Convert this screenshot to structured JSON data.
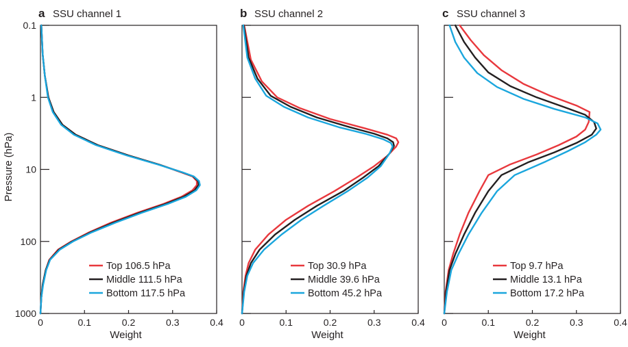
{
  "figure": {
    "ylabel": "Pressure (hPa)",
    "colors": {
      "red": "#e8383d",
      "black": "#231f20",
      "blue": "#1aa6dd",
      "axis": "#231f20"
    }
  },
  "chart_data": [
    {
      "type": "line",
      "panel_letter": "a",
      "title": "SSU channel 1",
      "xlabel": "Weight",
      "ylabel": "Pressure (hPa)",
      "xlim": [
        0,
        0.4
      ],
      "ylim": [
        1000,
        0.1
      ],
      "y_scale": "log",
      "y_inverted": true,
      "x_ticks": [
        "0",
        "0.1",
        "0.2",
        "0.3",
        "0.4"
      ],
      "y_ticks": [
        "0.1",
        "1",
        "10",
        "100",
        "1000"
      ],
      "legend_position": "bottom-right",
      "series": [
        {
          "name": "Top 106.5 hPa",
          "color": "#e8383d",
          "points": [
            [
              0,
              1000
            ],
            [
              0.002,
              600
            ],
            [
              0.005,
              400
            ],
            [
              0.012,
              250
            ],
            [
              0.02,
              180
            ],
            [
              0.04,
              130
            ],
            [
              0.07,
              100
            ],
            [
              0.11,
              75
            ],
            [
              0.16,
              55
            ],
            [
              0.22,
              40
            ],
            [
              0.28,
              30
            ],
            [
              0.32,
              24
            ],
            [
              0.345,
              19.5
            ],
            [
              0.355,
              16.5
            ],
            [
              0.355,
              14.5
            ],
            [
              0.345,
              12.5
            ],
            [
              0.32,
              11
            ],
            [
              0.27,
              8.6
            ],
            [
              0.2,
              6.4
            ],
            [
              0.13,
              4.6
            ],
            [
              0.08,
              3.3
            ],
            [
              0.05,
              2.4
            ],
            [
              0.03,
              1.6
            ],
            [
              0.018,
              1.0
            ],
            [
              0.01,
              0.5
            ],
            [
              0.005,
              0.25
            ],
            [
              0.002,
              0.1
            ]
          ]
        },
        {
          "name": "Middle 111.5 hPa",
          "color": "#231f20",
          "points": [
            [
              0,
              1000
            ],
            [
              0.002,
              600
            ],
            [
              0.005,
              400
            ],
            [
              0.012,
              250
            ],
            [
              0.021,
              180
            ],
            [
              0.042,
              130
            ],
            [
              0.072,
              100
            ],
            [
              0.113,
              75
            ],
            [
              0.165,
              55
            ],
            [
              0.225,
              40
            ],
            [
              0.285,
              30
            ],
            [
              0.325,
              24
            ],
            [
              0.35,
              19.5
            ],
            [
              0.359,
              16.5
            ],
            [
              0.358,
              14.5
            ],
            [
              0.347,
              12.5
            ],
            [
              0.322,
              11
            ],
            [
              0.27,
              8.6
            ],
            [
              0.2,
              6.4
            ],
            [
              0.13,
              4.6
            ],
            [
              0.08,
              3.3
            ],
            [
              0.05,
              2.4
            ],
            [
              0.03,
              1.6
            ],
            [
              0.018,
              1.0
            ],
            [
              0.01,
              0.5
            ],
            [
              0.005,
              0.25
            ],
            [
              0.002,
              0.1
            ]
          ]
        },
        {
          "name": "Bottom 117.5 hPa",
          "color": "#1aa6dd",
          "points": [
            [
              0,
              1000
            ],
            [
              0.002,
              600
            ],
            [
              0.006,
              400
            ],
            [
              0.013,
              250
            ],
            [
              0.022,
              180
            ],
            [
              0.044,
              130
            ],
            [
              0.074,
              100
            ],
            [
              0.116,
              75
            ],
            [
              0.17,
              55
            ],
            [
              0.23,
              40
            ],
            [
              0.29,
              30
            ],
            [
              0.33,
              24
            ],
            [
              0.354,
              19.5
            ],
            [
              0.362,
              16.5
            ],
            [
              0.36,
              14.5
            ],
            [
              0.348,
              12.5
            ],
            [
              0.323,
              11
            ],
            [
              0.268,
              8.6
            ],
            [
              0.196,
              6.4
            ],
            [
              0.126,
              4.6
            ],
            [
              0.076,
              3.3
            ],
            [
              0.047,
              2.4
            ],
            [
              0.028,
              1.6
            ],
            [
              0.017,
              1.0
            ],
            [
              0.01,
              0.5
            ],
            [
              0.005,
              0.25
            ],
            [
              0.002,
              0.1
            ]
          ]
        }
      ]
    },
    {
      "type": "line",
      "panel_letter": "b",
      "title": "SSU channel 2",
      "xlabel": "Weight",
      "ylabel": "",
      "xlim": [
        0,
        0.4
      ],
      "ylim": [
        1000,
        0.1
      ],
      "y_scale": "log",
      "y_inverted": true,
      "x_ticks": [
        "0",
        "0.1",
        "0.2",
        "0.3",
        "0.4"
      ],
      "y_ticks": [],
      "legend_position": "bottom-right",
      "series": [
        {
          "name": "Top 30.9 hPa",
          "color": "#e8383d",
          "points": [
            [
              0,
              1000
            ],
            [
              0.003,
              500
            ],
            [
              0.008,
              300
            ],
            [
              0.015,
              200
            ],
            [
              0.03,
              130
            ],
            [
              0.06,
              80
            ],
            [
              0.1,
              50
            ],
            [
              0.15,
              32
            ],
            [
              0.21,
              20
            ],
            [
              0.26,
              13
            ],
            [
              0.3,
              9
            ],
            [
              0.33,
              6.5
            ],
            [
              0.35,
              4.8
            ],
            [
              0.355,
              4.2
            ],
            [
              0.35,
              3.7
            ],
            [
              0.33,
              3.3
            ],
            [
              0.28,
              2.7
            ],
            [
              0.2,
              2.0
            ],
            [
              0.13,
              1.4
            ],
            [
              0.08,
              1.0
            ],
            [
              0.045,
              0.6
            ],
            [
              0.02,
              0.3
            ],
            [
              0.005,
              0.1
            ]
          ]
        },
        {
          "name": "Middle 39.6 hPa",
          "color": "#231f20",
          "points": [
            [
              0,
              1000
            ],
            [
              0.004,
              500
            ],
            [
              0.01,
              300
            ],
            [
              0.02,
              200
            ],
            [
              0.04,
              130
            ],
            [
              0.075,
              80
            ],
            [
              0.12,
              50
            ],
            [
              0.17,
              32
            ],
            [
              0.23,
              20
            ],
            [
              0.275,
              13
            ],
            [
              0.31,
              9
            ],
            [
              0.335,
              6.0
            ],
            [
              0.345,
              4.7
            ],
            [
              0.343,
              4.2
            ],
            [
              0.33,
              3.7
            ],
            [
              0.3,
              3.2
            ],
            [
              0.245,
              2.6
            ],
            [
              0.17,
              1.9
            ],
            [
              0.11,
              1.35
            ],
            [
              0.065,
              0.95
            ],
            [
              0.035,
              0.55
            ],
            [
              0.015,
              0.28
            ],
            [
              0.004,
              0.1
            ]
          ]
        },
        {
          "name": "Bottom 45.2 hPa",
          "color": "#1aa6dd",
          "points": [
            [
              0,
              1000
            ],
            [
              0.005,
              500
            ],
            [
              0.012,
              300
            ],
            [
              0.025,
              200
            ],
            [
              0.05,
              130
            ],
            [
              0.09,
              80
            ],
            [
              0.135,
              50
            ],
            [
              0.185,
              32
            ],
            [
              0.24,
              20
            ],
            [
              0.285,
              13
            ],
            [
              0.315,
              9
            ],
            [
              0.335,
              6.0
            ],
            [
              0.342,
              4.8
            ],
            [
              0.338,
              4.3
            ],
            [
              0.32,
              3.8
            ],
            [
              0.28,
              3.2
            ],
            [
              0.22,
              2.6
            ],
            [
              0.15,
              1.9
            ],
            [
              0.095,
              1.35
            ],
            [
              0.055,
              0.95
            ],
            [
              0.03,
              0.55
            ],
            [
              0.012,
              0.28
            ],
            [
              0.003,
              0.1
            ]
          ]
        }
      ]
    },
    {
      "type": "line",
      "panel_letter": "c",
      "title": "SSU channel 3",
      "xlabel": "Weight",
      "ylabel": "",
      "xlim": [
        0,
        0.4
      ],
      "ylim": [
        1000,
        0.1
      ],
      "y_scale": "log",
      "y_inverted": true,
      "x_ticks": [
        "0",
        "0.1",
        "0.2",
        "0.3",
        "0.4"
      ],
      "y_ticks": [],
      "legend_position": "bottom-right",
      "series": [
        {
          "name": "Top 9.7 hPa",
          "color": "#e8383d",
          "points": [
            [
              0,
              1000
            ],
            [
              0.003,
              500
            ],
            [
              0.01,
              250
            ],
            [
              0.02,
              150
            ],
            [
              0.035,
              80
            ],
            [
              0.055,
              40
            ],
            [
              0.08,
              20
            ],
            [
              0.1,
              12
            ],
            [
              0.15,
              8.5
            ],
            [
              0.21,
              6.2
            ],
            [
              0.26,
              4.6
            ],
            [
              0.3,
              3.5
            ],
            [
              0.32,
              2.8
            ],
            [
              0.328,
              2.2
            ],
            [
              0.33,
              1.6
            ],
            [
              0.3,
              1.3
            ],
            [
              0.24,
              0.95
            ],
            [
              0.18,
              0.65
            ],
            [
              0.13,
              0.42
            ],
            [
              0.09,
              0.26
            ],
            [
              0.06,
              0.16
            ],
            [
              0.035,
              0.1
            ]
          ]
        },
        {
          "name": "Middle 13.1 hPa",
          "color": "#231f20",
          "points": [
            [
              0,
              1000
            ],
            [
              0.004,
              500
            ],
            [
              0.012,
              250
            ],
            [
              0.025,
              150
            ],
            [
              0.045,
              80
            ],
            [
              0.07,
              40
            ],
            [
              0.1,
              20
            ],
            [
              0.13,
              12
            ],
            [
              0.19,
              8.0
            ],
            [
              0.25,
              5.8
            ],
            [
              0.3,
              4.3
            ],
            [
              0.335,
              3.3
            ],
            [
              0.345,
              2.7
            ],
            [
              0.34,
              2.2
            ],
            [
              0.32,
              1.75
            ],
            [
              0.27,
              1.35
            ],
            [
              0.21,
              1.0
            ],
            [
              0.15,
              0.7
            ],
            [
              0.1,
              0.45
            ],
            [
              0.07,
              0.28
            ],
            [
              0.045,
              0.17
            ],
            [
              0.025,
              0.1
            ]
          ]
        },
        {
          "name": "Bottom 17.2 hPa",
          "color": "#1aa6dd",
          "points": [
            [
              0,
              1000
            ],
            [
              0.006,
              500
            ],
            [
              0.016,
              250
            ],
            [
              0.032,
              150
            ],
            [
              0.055,
              80
            ],
            [
              0.085,
              40
            ],
            [
              0.12,
              20
            ],
            [
              0.16,
              12
            ],
            [
              0.23,
              7.8
            ],
            [
              0.28,
              5.6
            ],
            [
              0.32,
              4.2
            ],
            [
              0.345,
              3.3
            ],
            [
              0.355,
              2.8
            ],
            [
              0.348,
              2.3
            ],
            [
              0.32,
              1.9
            ],
            [
              0.25,
              1.45
            ],
            [
              0.18,
              1.05
            ],
            [
              0.12,
              0.72
            ],
            [
              0.075,
              0.46
            ],
            [
              0.045,
              0.28
            ],
            [
              0.025,
              0.17
            ],
            [
              0.012,
              0.1
            ]
          ]
        }
      ]
    }
  ]
}
